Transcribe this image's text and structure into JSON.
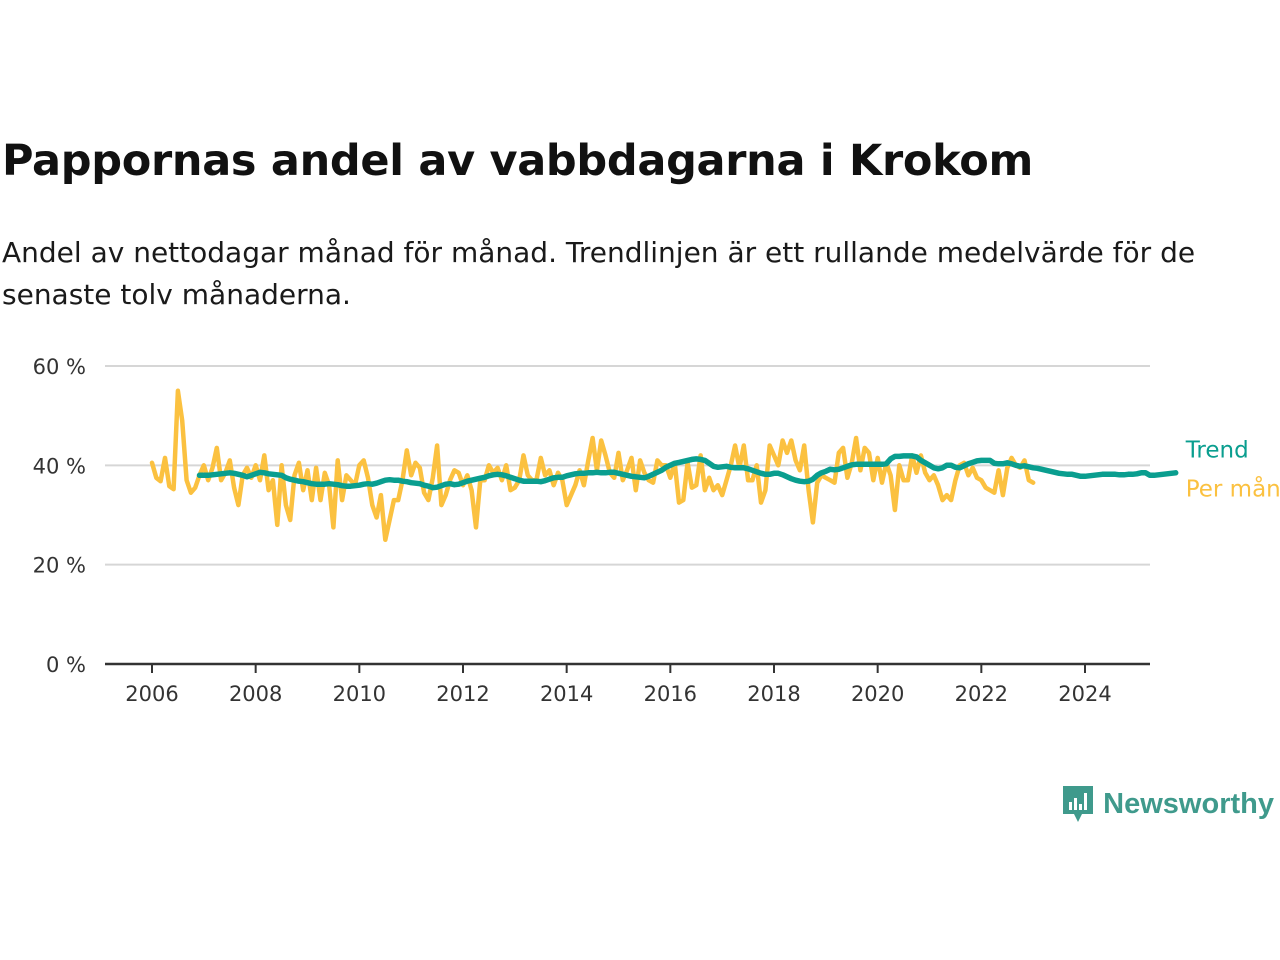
{
  "title": "Pappornas andel av vabbdagarna i Krokom",
  "subtitle": "Andel av nettodagar månad för månad. Trendlinjen är ett rullande medelvärde för de senaste tolv månaderna.",
  "brand": {
    "name": "Newsworthy"
  },
  "colors": {
    "monthly": "#fbc140",
    "trend": "#0a9e8f",
    "grid": "#d6d6d6",
    "axis": "#333333",
    "brand": "#3f9a8c"
  },
  "chart_data": {
    "type": "line",
    "xlim": [
      2006,
      2024.4
    ],
    "ylim": [
      0,
      60
    ],
    "y_ticks": [
      {
        "value": 0,
        "label": "0 %"
      },
      {
        "value": 20,
        "label": "20 %"
      },
      {
        "value": 40,
        "label": "40 %"
      },
      {
        "value": 60,
        "label": "60 %"
      }
    ],
    "x_ticks": [
      {
        "value": 2006,
        "label": "2006"
      },
      {
        "value": 2008,
        "label": "2008"
      },
      {
        "value": 2010,
        "label": "2010"
      },
      {
        "value": 2012,
        "label": "2012"
      },
      {
        "value": 2014,
        "label": "2014"
      },
      {
        "value": 2016,
        "label": "2016"
      },
      {
        "value": 2018,
        "label": "2018"
      },
      {
        "value": 2020,
        "label": "2020"
      },
      {
        "value": 2022,
        "label": "2022"
      },
      {
        "value": 2024,
        "label": "2024"
      }
    ],
    "series": [
      {
        "name": "Per månad",
        "start": 2006.0,
        "step_months": 1,
        "values": [
          40.5,
          37.5,
          36.8,
          41.5,
          35.8,
          35.2,
          55.0,
          49.0,
          37.0,
          34.5,
          35.5,
          38.0,
          40.0,
          37.0,
          39.5,
          43.5,
          37.0,
          38.5,
          41.0,
          35.5,
          32.0,
          38.0,
          39.5,
          37.5,
          40.0,
          37.0,
          42.0,
          35.0,
          37.0,
          28.0,
          40.0,
          32.0,
          29.0,
          38.0,
          40.5,
          35.0,
          39.0,
          33.0,
          39.5,
          33.0,
          38.5,
          36.0,
          27.5,
          41.0,
          33.0,
          38.0,
          37.0,
          36.0,
          40.0,
          41.0,
          37.5,
          32.0,
          29.5,
          34.0,
          25.0,
          29.0,
          33.0,
          33.0,
          37.0,
          43.0,
          38.0,
          40.5,
          39.5,
          34.5,
          33.0,
          37.5,
          44.0,
          32.0,
          34.0,
          37.0,
          39.0,
          38.5,
          36.0,
          38.0,
          35.0,
          27.5,
          37.0,
          37.0,
          40.0,
          38.5,
          39.5,
          37.0,
          40.0,
          35.0,
          35.5,
          37.0,
          42.0,
          38.0,
          37.0,
          37.0,
          41.5,
          38.0,
          39.0,
          36.0,
          38.5,
          37.0,
          32.0,
          34.0,
          36.0,
          39.0,
          36.0,
          41.0,
          45.5,
          39.0,
          45.0,
          42.0,
          38.5,
          37.5,
          42.5,
          37.0,
          39.0,
          41.5,
          35.0,
          41.0,
          38.5,
          37.0,
          36.5,
          41.0,
          40.0,
          40.0,
          37.5,
          40.5,
          32.5,
          33.0,
          40.5,
          35.5,
          36.0,
          42.0,
          35.0,
          37.5,
          35.0,
          36.0,
          34.0,
          37.0,
          40.0,
          44.0,
          39.5,
          44.0,
          37.0,
          37.0,
          40.0,
          32.5,
          35.0,
          44.0,
          42.0,
          40.0,
          45.0,
          42.5,
          45.0,
          41.0,
          39.0,
          44.0,
          35.0,
          28.5,
          36.5,
          38.0,
          37.5,
          37.0,
          36.5,
          42.5,
          43.5,
          37.5,
          40.5,
          45.5,
          39.0,
          43.5,
          42.5,
          37.0,
          41.5,
          36.5,
          40.5,
          38.0,
          31.0,
          40.0,
          37.0,
          37.0,
          42.0,
          38.5,
          42.0,
          38.5,
          37.0,
          38.0,
          36.0,
          33.0,
          34.0,
          33.0,
          37.0,
          40.0,
          40.5,
          38.0,
          39.5,
          37.5,
          37.0,
          35.5,
          35.0,
          34.5,
          39.0,
          34.0,
          39.5,
          41.5,
          40.0,
          39.5,
          41.0,
          37.0,
          36.5
        ]
      },
      {
        "name": "Trend",
        "start": 2006.917,
        "step_months": 1,
        "values": [
          38.0,
          38.0,
          38.0,
          38.1,
          38.2,
          38.3,
          38.4,
          38.5,
          38.4,
          38.2,
          38.0,
          37.7,
          38.0,
          38.3,
          38.6,
          38.5,
          38.3,
          38.2,
          38.1,
          38.0,
          37.5,
          37.2,
          37.0,
          36.8,
          36.7,
          36.5,
          36.3,
          36.2,
          36.2,
          36.2,
          36.3,
          36.2,
          36.1,
          35.9,
          35.8,
          35.8,
          35.9,
          36.0,
          36.2,
          36.3,
          36.2,
          36.4,
          36.7,
          37.0,
          37.1,
          37.0,
          37.0,
          36.8,
          36.7,
          36.5,
          36.4,
          36.3,
          36.0,
          35.8,
          35.5,
          35.6,
          35.9,
          36.2,
          36.3,
          36.1,
          36.2,
          36.5,
          36.8,
          37.0,
          37.2,
          37.4,
          37.6,
          37.9,
          38.1,
          38.2,
          38.1,
          37.9,
          37.6,
          37.3,
          37.0,
          36.8,
          36.8,
          36.8,
          36.8,
          36.7,
          36.9,
          37.2,
          37.5,
          37.6,
          37.6,
          37.9,
          38.1,
          38.3,
          38.4,
          38.4,
          38.5,
          38.5,
          38.6,
          38.5,
          38.5,
          38.6,
          38.6,
          38.4,
          38.2,
          38.0,
          37.8,
          37.7,
          37.6,
          37.5,
          37.8,
          38.2,
          38.6,
          39.0,
          39.6,
          40.0,
          40.4,
          40.6,
          40.8,
          41.0,
          41.2,
          41.3,
          41.2,
          41.0,
          40.4,
          39.8,
          39.6,
          39.7,
          39.8,
          39.6,
          39.5,
          39.5,
          39.5,
          39.3,
          39.0,
          38.7,
          38.4,
          38.2,
          38.2,
          38.4,
          38.4,
          38.1,
          37.7,
          37.3,
          37.0,
          36.8,
          36.7,
          36.8,
          37.2,
          38.0,
          38.5,
          38.8,
          39.2,
          39.1,
          39.2,
          39.5,
          39.8,
          40.1,
          40.2,
          40.2,
          40.2,
          40.2,
          40.2,
          40.2,
          40.2,
          40.3,
          41.3,
          41.8,
          41.8,
          41.9,
          41.9,
          41.9,
          41.7,
          41.0,
          40.5,
          40.0,
          39.5,
          39.3,
          39.5,
          40.0,
          40.0,
          39.6,
          39.5,
          39.9,
          40.3,
          40.6,
          40.9,
          41.0,
          41.0,
          41.0,
          40.4,
          40.3,
          40.3,
          40.5,
          40.3,
          40.0,
          39.8,
          39.9,
          39.7,
          39.5,
          39.4,
          39.2,
          39.0,
          38.8,
          38.6,
          38.4,
          38.3,
          38.2,
          38.2,
          38.0,
          37.8,
          37.8,
          37.9,
          38.0,
          38.1,
          38.2,
          38.2,
          38.2,
          38.2,
          38.1,
          38.1,
          38.2,
          38.2,
          38.3,
          38.5,
          38.5,
          38.0,
          38.0,
          38.1,
          38.2,
          38.3,
          38.4,
          38.5
        ]
      }
    ]
  }
}
